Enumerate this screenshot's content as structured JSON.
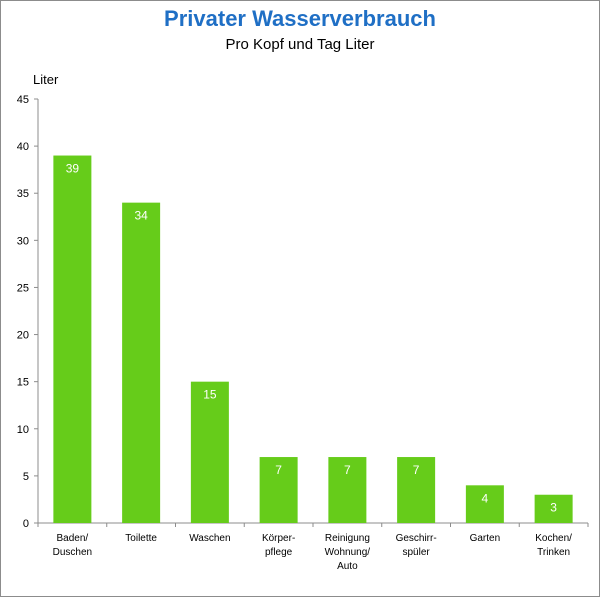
{
  "chart_data": {
    "type": "bar",
    "title": "Privater Wasserverbrauch",
    "subtitle": "Pro Kopf und Tag Liter",
    "ylabel": "Liter",
    "xlabel": "",
    "ylim": [
      0,
      45
    ],
    "yticks": [
      0,
      5,
      10,
      15,
      20,
      25,
      30,
      35,
      40,
      45
    ],
    "grid": false,
    "categories": [
      [
        "Baden/",
        "Duschen"
      ],
      [
        "Toilette"
      ],
      [
        "Waschen"
      ],
      [
        "Körper-",
        "pflege"
      ],
      [
        "Reinigung",
        "Wohnung/",
        "Auto"
      ],
      [
        "Geschirr-",
        "spüler"
      ],
      [
        "Garten"
      ],
      [
        "Kochen/",
        "Trinken"
      ]
    ],
    "values": [
      39,
      34,
      15,
      7,
      7,
      7,
      4,
      3
    ],
    "bar_color": "#66cc1a"
  }
}
